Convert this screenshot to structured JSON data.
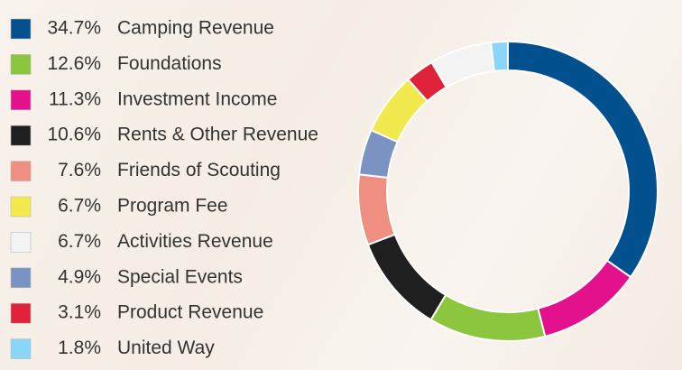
{
  "chart_data": {
    "type": "donut",
    "categories": [
      "Camping Revenue",
      "Foundations",
      "Investment Income",
      "Rents & Other Revenue",
      "Friends of Scouting",
      "Program Fee",
      "Activities Revenue",
      "Special Events",
      "Product Revenue",
      "United Way"
    ],
    "values": [
      34.7,
      12.6,
      11.3,
      10.6,
      7.6,
      6.7,
      6.7,
      4.9,
      3.1,
      1.8
    ],
    "value_labels": [
      "34.7%",
      "12.6%",
      "11.3%",
      "10.6%",
      "7.6%",
      "6.7%",
      "6.7%",
      "4.9%",
      "3.1%",
      "1.8%"
    ],
    "colors": [
      "#03508f",
      "#8cc63f",
      "#e3128c",
      "#1f1f1f",
      "#ee8f82",
      "#f2e94e",
      "#f3f3f3",
      "#7b93c3",
      "#df2139",
      "#8bd6f6"
    ]
  }
}
